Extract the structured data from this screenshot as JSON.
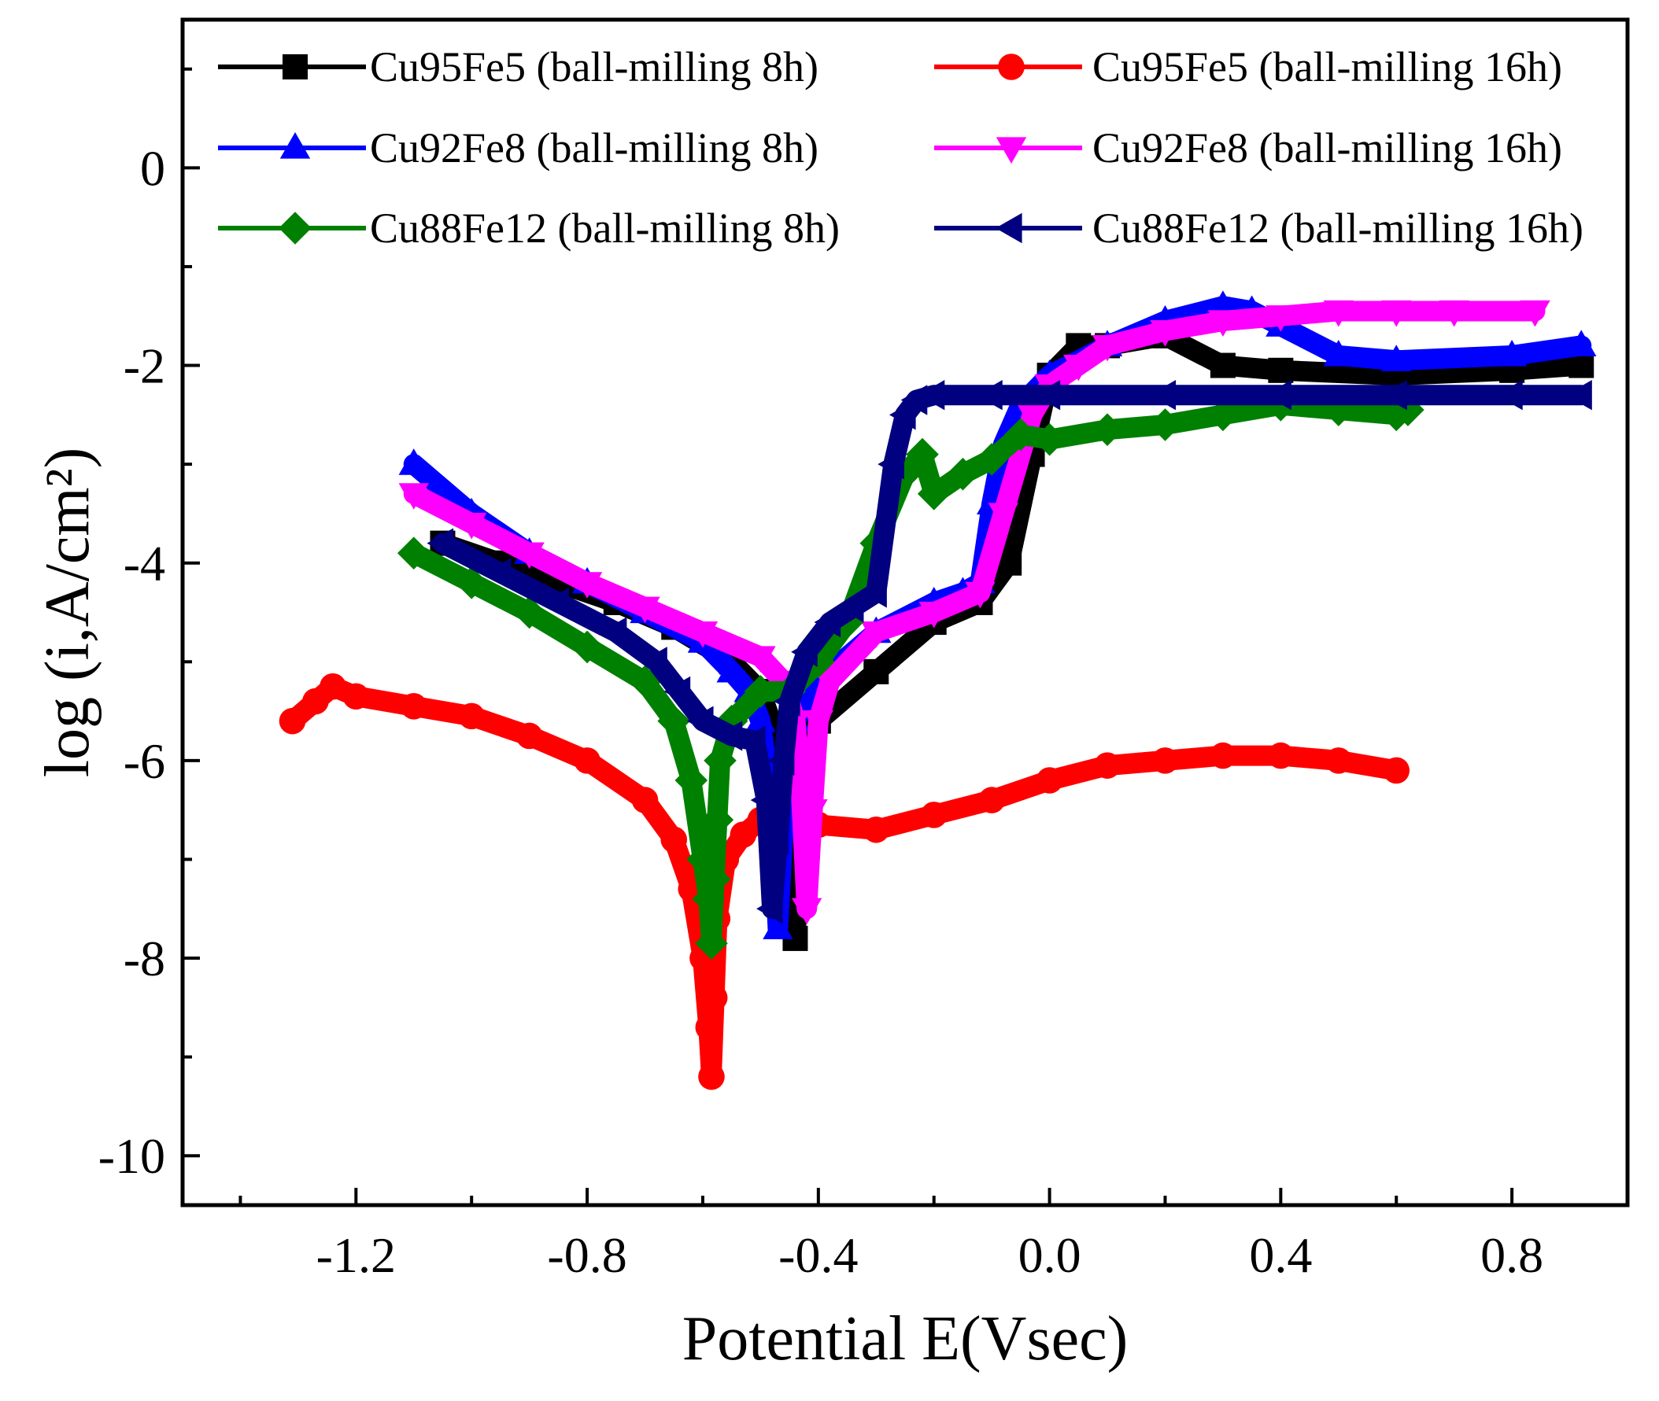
{
  "chart_data": {
    "type": "line",
    "title": "",
    "xlabel": "Potential E(Vsec)",
    "ylabel": "log (i,A/cm²)",
    "xlim": [
      -1.5,
      1.0
    ],
    "ylim": [
      -10.5,
      1.5
    ],
    "xticks": [
      -1.2,
      -0.8,
      -0.4,
      0.0,
      0.4,
      0.8
    ],
    "xtick_labels": [
      "-1.2",
      "-0.8",
      "-0.4",
      "0.0",
      "0.4",
      "0.8"
    ],
    "yticks": [
      -10,
      -8,
      -6,
      -4,
      -2,
      0
    ],
    "ytick_labels": [
      "-10",
      "-8",
      "-6",
      "-4",
      "-2",
      "0"
    ],
    "grid": false,
    "legend_position": "top, two columns",
    "series": [
      {
        "name": "Cu95Fe5 (ball-milling 8h)",
        "color": "#000000",
        "marker": "square",
        "x": [
          -1.05,
          -0.95,
          -0.85,
          -0.75,
          -0.65,
          -0.55,
          -0.5,
          -0.47,
          -0.45,
          -0.44,
          -0.43,
          -0.4,
          -0.3,
          -0.2,
          -0.12,
          -0.07,
          -0.03,
          0.0,
          0.05,
          0.1,
          0.2,
          0.3,
          0.4,
          0.6,
          0.8,
          0.92
        ],
        "y": [
          -3.8,
          -4.0,
          -4.2,
          -4.4,
          -4.65,
          -5.0,
          -5.3,
          -5.8,
          -6.8,
          -7.8,
          -6.8,
          -5.6,
          -5.1,
          -4.6,
          -4.4,
          -4.0,
          -2.9,
          -2.1,
          -1.8,
          -1.8,
          -1.7,
          -2.0,
          -2.05,
          -2.1,
          -2.05,
          -2.0
        ]
      },
      {
        "name": "Cu95Fe5 (ball-milling 16h)",
        "color": "#ff0000",
        "marker": "circle",
        "x": [
          -1.31,
          -1.27,
          -1.24,
          -1.2,
          -1.1,
          -1.0,
          -0.9,
          -0.8,
          -0.7,
          -0.65,
          -0.62,
          -0.6,
          -0.59,
          -0.585,
          -0.58,
          -0.575,
          -0.56,
          -0.53,
          -0.5,
          -0.45,
          -0.4,
          -0.3,
          -0.2,
          -0.1,
          0.0,
          0.1,
          0.2,
          0.3,
          0.4,
          0.5,
          0.6
        ],
        "y": [
          -5.6,
          -5.4,
          -5.25,
          -5.35,
          -5.45,
          -5.55,
          -5.75,
          -6.0,
          -6.4,
          -6.8,
          -7.3,
          -8.0,
          -8.7,
          -9.2,
          -8.4,
          -7.6,
          -7.0,
          -6.75,
          -6.6,
          -6.6,
          -6.65,
          -6.7,
          -6.55,
          -6.4,
          -6.2,
          -6.05,
          -6.0,
          -5.95,
          -5.95,
          -6.0,
          -6.1
        ]
      },
      {
        "name": "Cu92Fe8 (ball-milling 8h)",
        "color": "#0000ff",
        "marker": "triangle-up",
        "x": [
          -1.1,
          -1.0,
          -0.9,
          -0.8,
          -0.7,
          -0.6,
          -0.55,
          -0.52,
          -0.5,
          -0.48,
          -0.47,
          -0.46,
          -0.44,
          -0.4,
          -0.3,
          -0.2,
          -0.15,
          -0.12,
          -0.1,
          -0.08,
          -0.05,
          0.0,
          0.1,
          0.2,
          0.3,
          0.35,
          0.4,
          0.5,
          0.6,
          0.8,
          0.92
        ],
        "y": [
          -3.0,
          -3.5,
          -3.9,
          -4.2,
          -4.5,
          -4.8,
          -5.1,
          -5.3,
          -5.6,
          -6.5,
          -7.7,
          -6.6,
          -5.6,
          -5.2,
          -4.7,
          -4.4,
          -4.3,
          -4.2,
          -3.4,
          -2.8,
          -2.4,
          -2.1,
          -1.8,
          -1.55,
          -1.4,
          -1.45,
          -1.6,
          -1.9,
          -1.95,
          -1.9,
          -1.8
        ]
      },
      {
        "name": "Cu92Fe8 (ball-milling 16h)",
        "color": "#ff00ff",
        "marker": "triangle-down",
        "x": [
          -1.1,
          -1.0,
          -0.9,
          -0.8,
          -0.7,
          -0.6,
          -0.5,
          -0.46,
          -0.44,
          -0.43,
          -0.42,
          -0.41,
          -0.4,
          -0.38,
          -0.3,
          -0.2,
          -0.12,
          -0.08,
          -0.05,
          -0.03,
          0.0,
          0.05,
          0.1,
          0.2,
          0.3,
          0.4,
          0.5,
          0.6,
          0.7,
          0.84
        ],
        "y": [
          -3.3,
          -3.6,
          -3.9,
          -4.2,
          -4.45,
          -4.7,
          -4.95,
          -5.2,
          -5.6,
          -6.3,
          -7.5,
          -6.5,
          -5.6,
          -5.2,
          -4.7,
          -4.5,
          -4.3,
          -3.5,
          -2.9,
          -2.5,
          -2.2,
          -2.0,
          -1.8,
          -1.65,
          -1.55,
          -1.5,
          -1.45,
          -1.45,
          -1.45,
          -1.45
        ]
      },
      {
        "name": "Cu88Fe12 (ball-milling 8h)",
        "color": "#008000",
        "marker": "diamond",
        "x": [
          -1.1,
          -1.0,
          -0.9,
          -0.8,
          -0.7,
          -0.65,
          -0.62,
          -0.6,
          -0.59,
          -0.585,
          -0.58,
          -0.575,
          -0.57,
          -0.55,
          -0.5,
          -0.45,
          -0.4,
          -0.35,
          -0.3,
          -0.25,
          -0.22,
          -0.2,
          -0.15,
          -0.1,
          -0.05,
          0.0,
          0.1,
          0.2,
          0.3,
          0.4,
          0.5,
          0.6,
          0.62
        ],
        "y": [
          -3.9,
          -4.2,
          -4.5,
          -4.85,
          -5.2,
          -5.6,
          -6.2,
          -7.0,
          -7.4,
          -7.85,
          -7.2,
          -6.6,
          -6.0,
          -5.6,
          -5.3,
          -5.3,
          -5.0,
          -4.6,
          -3.8,
          -3.1,
          -2.9,
          -3.3,
          -3.1,
          -2.95,
          -2.7,
          -2.75,
          -2.65,
          -2.6,
          -2.5,
          -2.4,
          -2.45,
          -2.5,
          -2.45
        ]
      },
      {
        "name": "Cu88Fe12 (ball-milling 16h)",
        "color": "#000080",
        "marker": "triangle-left",
        "x": [
          -1.05,
          -0.95,
          -0.85,
          -0.75,
          -0.68,
          -0.64,
          -0.6,
          -0.55,
          -0.51,
          -0.49,
          -0.48,
          -0.47,
          -0.46,
          -0.45,
          -0.42,
          -0.38,
          -0.34,
          -0.3,
          -0.27,
          -0.25,
          -0.23,
          -0.2,
          -0.1,
          0.0,
          0.2,
          0.4,
          0.6,
          0.8,
          0.92
        ],
        "y": [
          -3.8,
          -4.1,
          -4.4,
          -4.7,
          -5.0,
          -5.3,
          -5.6,
          -5.75,
          -5.8,
          -6.4,
          -7.5,
          -6.8,
          -6.0,
          -5.4,
          -4.9,
          -4.6,
          -4.45,
          -4.3,
          -3.0,
          -2.5,
          -2.35,
          -2.3,
          -2.3,
          -2.3,
          -2.3,
          -2.3,
          -2.3,
          -2.3,
          -2.3
        ]
      }
    ]
  }
}
